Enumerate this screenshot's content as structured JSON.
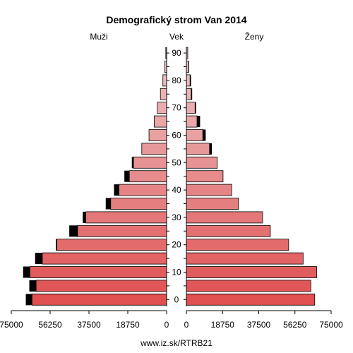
{
  "chart_data": {
    "type": "bar",
    "title": "Demografický strom Van 2014",
    "left_label": "Muži",
    "center_label": "Vek",
    "right_label": "Ženy",
    "source": "www.iz.sk/RTRB21",
    "age_groups": [
      "0-4",
      "5-9",
      "10-14",
      "15-19",
      "20-24",
      "25-29",
      "30-34",
      "35-39",
      "40-44",
      "45-49",
      "50-54",
      "55-59",
      "60-64",
      "65-69",
      "70-74",
      "75-79",
      "80-84",
      "85-89",
      "90+"
    ],
    "age_ticks": [
      0,
      10,
      20,
      30,
      40,
      50,
      60,
      70,
      80,
      90
    ],
    "x_ticks_left": [
      "75000",
      "56250",
      "37500",
      "18750",
      "0"
    ],
    "x_ticks_right": [
      "0",
      "18750",
      "37500",
      "56250",
      "75000"
    ],
    "xlim": [
      0,
      75000
    ],
    "series": [
      {
        "name": "Muži",
        "values": [
          65000,
          63000,
          66000,
          60000,
          53000,
          43000,
          39000,
          27000,
          23000,
          18000,
          16000,
          12000,
          8500,
          6000,
          4500,
          3000,
          1800,
          900,
          400
        ],
        "excess": [
          3000,
          3300,
          3300,
          3500,
          500,
          4000,
          1500,
          2400,
          2400,
          2400,
          800,
          0,
          0,
          0,
          0,
          0,
          0,
          0,
          0
        ]
      },
      {
        "name": "Ženy",
        "values": [
          66500,
          64500,
          67500,
          60500,
          53000,
          43500,
          39500,
          27000,
          23500,
          19000,
          16000,
          12000,
          8500,
          5500,
          4500,
          2500,
          1900,
          1100,
          700
        ],
        "excess": [
          0,
          0,
          0,
          0,
          0,
          0,
          0,
          0,
          0,
          0,
          0,
          1200,
          1500,
          1600,
          500,
          500,
          500,
          300,
          100
        ]
      }
    ]
  }
}
